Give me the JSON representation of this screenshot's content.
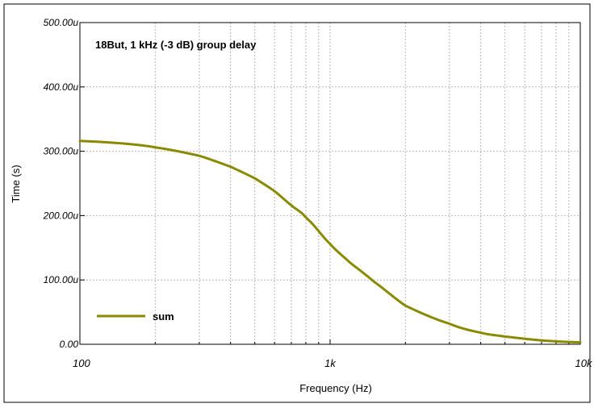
{
  "chart_data": {
    "type": "line",
    "title": "18But, 1 kHz (-3 dB)  group delay",
    "xlabel": "Frequency (Hz)",
    "ylabel": "Time (s)",
    "x_scale": "log",
    "xlim": [
      100,
      10000
    ],
    "ylim": [
      0,
      0.0005
    ],
    "x_tick_labels": [
      "100",
      "1k",
      "10k"
    ],
    "y_tick_labels": [
      "0.00",
      "100.00u",
      "200.00u",
      "300.00u",
      "400.00u",
      "500.00u"
    ],
    "grid": true,
    "legend_position": "bottom-left",
    "series": [
      {
        "name": "sum",
        "color": "#8a8a00",
        "x": [
          100,
          150,
          200,
          300,
          400,
          500,
          600,
          700,
          800,
          1000,
          1200,
          1500,
          2000,
          3000,
          4000,
          5000,
          7000,
          10000
        ],
        "y": [
          0.000316,
          0.000312,
          0.000306,
          0.000293,
          0.000276,
          0.000258,
          0.000238,
          0.000216,
          0.000197,
          0.000156,
          0.000127,
          9.7e-05,
          6e-05,
          3.2e-05,
          1.8e-05,
          1.2e-05,
          6e-06,
          3e-06
        ]
      }
    ]
  }
}
